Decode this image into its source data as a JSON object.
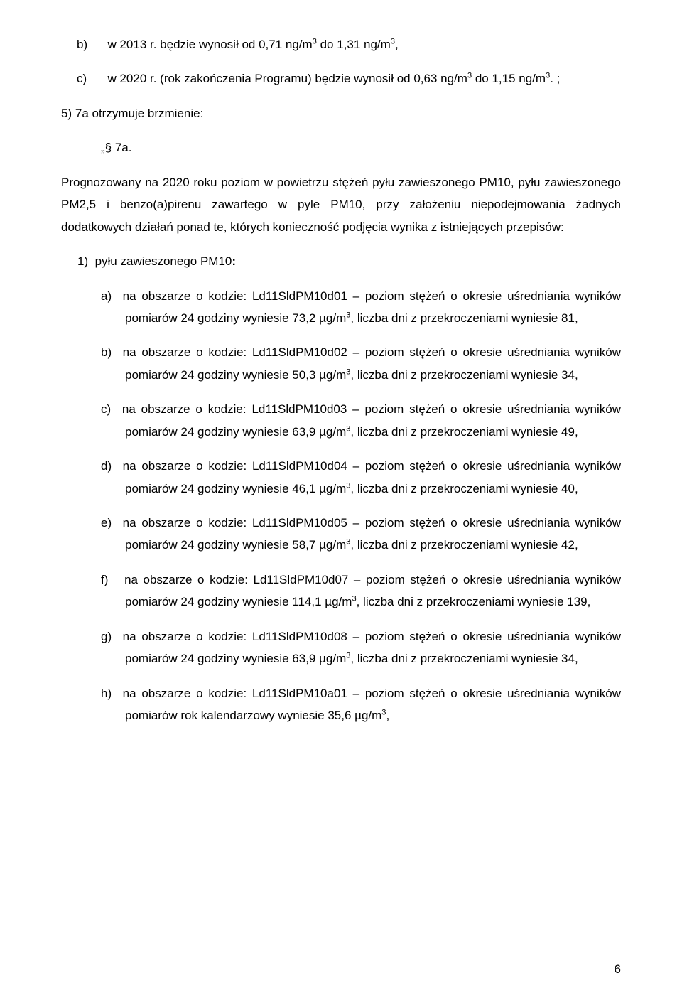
{
  "top": {
    "b_label": "b)",
    "b_text_1": "w 2013 r. będzie wynosił od 0,71 ng/m",
    "b_text_2": " do 1,31 ng/m",
    "b_text_3": ",",
    "c_label": "c)",
    "c_text_1": "w 2020 r. (rok zakończenia Programu) będzie wynosił od 0,63 ng/m",
    "c_text_2": " do 1,15 ng/m",
    "c_text_3": ". ;"
  },
  "item5": {
    "label": "5)",
    "text": "7a otrzymuje brzmienie:"
  },
  "s7a": {
    "heading": "„§ 7a.",
    "intro_1": "Prognozowany na 2020 roku poziom w powietrzu stężeń pyłu zawieszonego PM10, pyłu zawieszonego PM2,5 i benzo(a)pirenu zawartego w pyle PM10, przy założeniu niepodejmowania żadnych dodatkowych działań ponad te, których konieczność podjęcia wynika z istniejących przepisów:"
  },
  "list1": {
    "label": "1)",
    "text_1": "pyłu zawieszonego PM10",
    "colon": ":"
  },
  "sub": {
    "a": {
      "label": "a)",
      "pre": "na obszarze o kodzie: Ld11SldPM10d01 – poziom stężeń o okresie uśredniania wyników pomiarów 24 godziny wyniesie 73,2 µg/m",
      "post": ", liczba dni z przekroczeniami wyniesie 81,"
    },
    "b": {
      "label": "b)",
      "pre": "na obszarze o kodzie: Ld11SldPM10d02 – poziom stężeń o okresie uśredniania wyników pomiarów 24 godziny wyniesie 50,3 µg/m",
      "post": ", liczba dni z przekroczeniami wyniesie 34,"
    },
    "c": {
      "label": "c)",
      "pre": "na obszarze o kodzie: Ld11SldPM10d03 – poziom stężeń o okresie uśredniania wyników pomiarów 24 godziny wyniesie 63,9 µg/m",
      "post": ", liczba dni z przekroczeniami wyniesie 49,"
    },
    "d": {
      "label": "d)",
      "pre": "na obszarze o kodzie: Ld11SldPM10d04 – poziom stężeń o okresie uśredniania wyników pomiarów 24 godziny wyniesie 46,1 µg/m",
      "post": ", liczba dni z przekroczeniami wyniesie 40,"
    },
    "e": {
      "label": "e)",
      "pre": "na obszarze o kodzie: Ld11SldPM10d05 – poziom stężeń o okresie uśredniania wyników pomiarów 24 godziny wyniesie 58,7 µg/m",
      "post": ", liczba dni z przekroczeniami wyniesie 42,"
    },
    "f": {
      "label": "f)",
      "pre": "na obszarze o kodzie: Ld11SldPM10d07 – poziom stężeń o okresie uśredniania wyników pomiarów 24 godziny wyniesie 114,1 µg/m",
      "post": ", liczba dni z przekroczeniami wyniesie 139,"
    },
    "g": {
      "label": "g)",
      "pre": "na obszarze o kodzie: Ld11SldPM10d08 – poziom stężeń o okresie uśredniania wyników pomiarów 24 godziny wyniesie 63,9 µg/m",
      "post": ", liczba dni z przekroczeniami wyniesie 34,"
    },
    "h": {
      "label": "h)",
      "pre": "na obszarze o kodzie: Ld11SldPM10a01 – poziom stężeń o okresie uśredniania wyników pomiarów rok kalendarzowy wyniesie 35,6 µg/m",
      "post": ","
    }
  },
  "exp3": "3",
  "page_number": "6"
}
